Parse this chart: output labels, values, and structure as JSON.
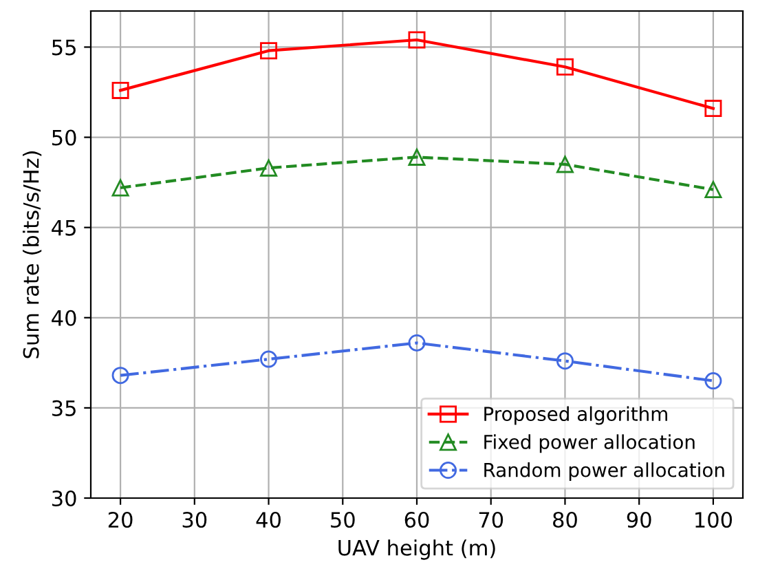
{
  "chart_data": {
    "type": "line",
    "xlabel": "UAV height (m)",
    "ylabel": "Sum rate (bits/s/Hz)",
    "x": [
      20,
      40,
      60,
      80,
      100
    ],
    "series": [
      {
        "name": "Proposed algorithm",
        "color": "#ff0000",
        "marker": "square",
        "line_style": "solid",
        "values": [
          52.6,
          54.8,
          55.4,
          53.9,
          51.6
        ]
      },
      {
        "name": "Fixed power allocation",
        "color": "#228b22",
        "marker": "triangle",
        "line_style": "dashed",
        "values": [
          47.2,
          48.3,
          48.9,
          48.5,
          47.1
        ]
      },
      {
        "name": "Random power allocation",
        "color": "#4169e1",
        "marker": "circle",
        "line_style": "dashdot",
        "values": [
          36.8,
          37.7,
          38.6,
          37.6,
          36.5
        ]
      }
    ],
    "xlim": [
      16,
      104
    ],
    "xticks": [
      20,
      30,
      40,
      50,
      60,
      70,
      80,
      90,
      100
    ],
    "ylim": [
      30,
      57
    ],
    "yticks": [
      30,
      35,
      40,
      45,
      50,
      55
    ],
    "grid": true,
    "legend": "bottom right"
  }
}
